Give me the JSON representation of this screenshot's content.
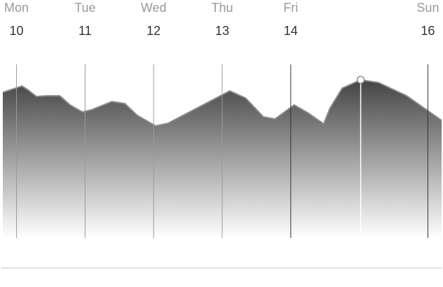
{
  "chart_data": {
    "type": "area",
    "categories": [
      "Mon",
      "Tue",
      "Wed",
      "Thu",
      "Fri",
      "Sun"
    ],
    "dates": [
      10,
      11,
      12,
      13,
      14,
      16
    ],
    "xticks": [
      0,
      1,
      2,
      3,
      4,
      6
    ],
    "tick_colors": [
      "#9a9a9a",
      "#9a9a9a",
      "#9a9a9a",
      "#9a9a9a",
      "#333333",
      "#333333"
    ],
    "x": [
      -0.2,
      0.08,
      0.16,
      0.29,
      0.45,
      0.63,
      0.78,
      0.96,
      1.09,
      1.39,
      1.58,
      1.76,
      2.03,
      2.21,
      3.11,
      3.34,
      3.6,
      3.77,
      4.05,
      4.26,
      4.48,
      4.57,
      4.75,
      5.02,
      5.28,
      5.69,
      6.2
    ],
    "values": [
      83.9,
      87.5,
      85.5,
      81.5,
      81.9,
      81.9,
      76.6,
      72.6,
      73.8,
      78.6,
      77.4,
      70.6,
      64.5,
      66.1,
      84.7,
      80.6,
      69.8,
      68.5,
      76.6,
      71.8,
      65.7,
      74.6,
      86.3,
      91.1,
      89.5,
      81.9,
      67.7
    ],
    "xlim": [
      -0.2,
      6.2
    ],
    "ylim": [
      0,
      100
    ],
    "color": "#444444",
    "line_color": "#8a8a8a",
    "selected_index": 23
  }
}
